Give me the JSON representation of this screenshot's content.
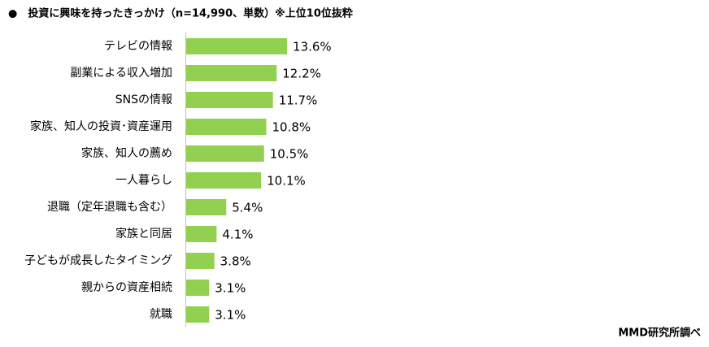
{
  "chart_data": {
    "type": "bar",
    "orientation": "horizontal",
    "title": "●　投資に興味を持ったきっかけ（n=14,990、単数）※上位10位抜粋",
    "source": "MMD研究所調べ",
    "categories": [
      "テレビの情報",
      "副業による収入増加",
      "SNSの情報",
      "家族、知人の投資･資産運用",
      "家族、知人の薦め",
      "一人暮らし",
      "退職（定年退職も含む）",
      "家族と同居",
      "子どもが成長したタイミング",
      "親からの資産相続",
      "就職"
    ],
    "values": [
      13.6,
      12.2,
      11.7,
      10.8,
      10.5,
      10.1,
      5.4,
      4.1,
      3.8,
      3.1,
      3.1
    ],
    "value_labels": [
      "13.6%",
      "12.2%",
      "11.7%",
      "10.8%",
      "10.5%",
      "10.1%",
      "5.4%",
      "4.1%",
      "3.8%",
      "3.1%",
      "3.1%"
    ],
    "color": "#92d050"
  }
}
